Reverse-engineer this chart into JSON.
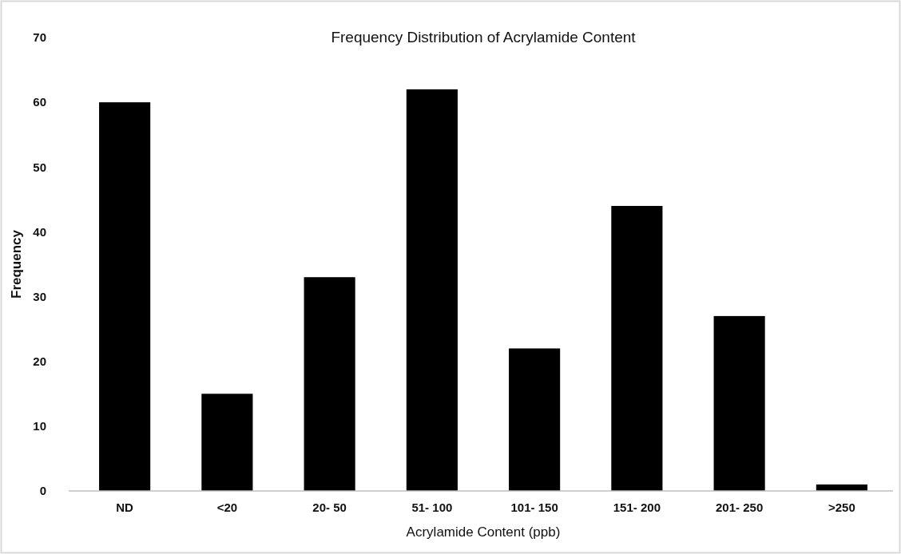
{
  "chart_data": {
    "type": "bar",
    "title": "Frequency Distribution of Acrylamide Content",
    "xlabel": "Acrylamide Content (ppb)",
    "ylabel": "Frequency",
    "categories": [
      "ND",
      "<20",
      "20- 50",
      "51- 100",
      "101- 150",
      "151- 200",
      "201- 250",
      ">250"
    ],
    "values": [
      60,
      15,
      33,
      62,
      22,
      44,
      27,
      1
    ],
    "color": "#000000",
    "ylim": [
      0,
      70
    ],
    "yticks": [
      0,
      10,
      20,
      30,
      40,
      50,
      60,
      70
    ],
    "grid": false
  }
}
